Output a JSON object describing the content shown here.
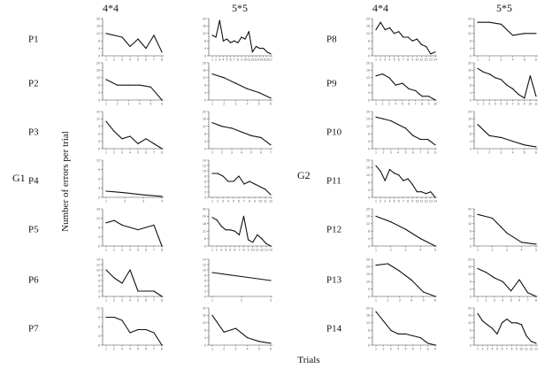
{
  "xlabel": "Trials",
  "ylabel": "Number of errors per trial",
  "columns": [
    "4*4",
    "5*5",
    "4*4",
    "5*5"
  ],
  "groups": [
    "G1",
    "G2"
  ],
  "chart_data": [
    {
      "type": "line",
      "group": "G1",
      "participant": "P1",
      "size": "4*4",
      "ylim": [
        0,
        20
      ],
      "yticks": [
        0,
        4,
        8,
        12,
        16,
        20
      ],
      "x": [
        1,
        2,
        3,
        4,
        5,
        6,
        7,
        8
      ],
      "values": [
        12,
        11,
        10,
        5,
        9,
        4,
        11,
        2
      ]
    },
    {
      "type": "line",
      "group": "G1",
      "participant": "P1",
      "size": "5*5",
      "ylim": [
        0,
        20
      ],
      "yticks": [
        0,
        4,
        8,
        12,
        16,
        20
      ],
      "x": [
        1,
        2,
        3,
        4,
        5,
        6,
        7,
        8,
        9,
        10,
        11,
        12,
        13,
        14,
        15,
        16,
        17
      ],
      "values": [
        11,
        10,
        19,
        8,
        9,
        7,
        8,
        7,
        10,
        9,
        13,
        2,
        5,
        4,
        4,
        2,
        1
      ]
    },
    {
      "type": "line",
      "group": "G1",
      "participant": "P2",
      "size": "4*4",
      "ylim": [
        0,
        20
      ],
      "yticks": [
        0,
        4,
        8,
        12,
        16,
        20
      ],
      "x": [
        1,
        2,
        3,
        4,
        5,
        6
      ],
      "values": [
        11,
        8,
        8,
        8,
        7,
        0
      ]
    },
    {
      "type": "line",
      "group": "G1",
      "participant": "P2",
      "size": "5*5",
      "ylim": [
        0,
        20
      ],
      "yticks": [
        0,
        4,
        8,
        12,
        16,
        20
      ],
      "x": [
        1,
        2,
        3,
        4,
        5,
        6
      ],
      "values": [
        14,
        12,
        9,
        6,
        4,
        1
      ]
    },
    {
      "type": "line",
      "group": "G1",
      "participant": "P3",
      "size": "4*4",
      "ylim": [
        0,
        15
      ],
      "yticks": [
        0,
        3,
        6,
        9,
        12,
        15
      ],
      "x": [
        1,
        2,
        3,
        4,
        5,
        6,
        7,
        8
      ],
      "values": [
        11,
        7,
        4,
        5,
        2,
        4,
        2,
        0
      ]
    },
    {
      "type": "line",
      "group": "G1",
      "participant": "P3",
      "size": "5*5",
      "ylim": [
        0,
        20
      ],
      "yticks": [
        0,
        4,
        8,
        12,
        16,
        20
      ],
      "x": [
        1,
        2,
        3,
        4,
        5,
        6,
        7
      ],
      "values": [
        14,
        12,
        11,
        9,
        7,
        6,
        2
      ]
    },
    {
      "type": "line",
      "group": "G1",
      "participant": "P4",
      "size": "4*4",
      "ylim": [
        0,
        12
      ],
      "yticks": [
        0,
        3,
        6,
        9,
        12
      ],
      "x": [
        1,
        2,
        3,
        4
      ],
      "values": [
        2,
        1.5,
        0.8,
        0.3
      ]
    },
    {
      "type": "line",
      "group": "G1",
      "participant": "P4",
      "size": "5*5",
      "ylim": [
        0,
        14
      ],
      "yticks": [
        0,
        2,
        4,
        6,
        8,
        10,
        12,
        14
      ],
      "x": [
        1,
        2,
        3,
        4,
        5,
        6,
        7,
        8,
        9,
        10,
        11,
        12
      ],
      "values": [
        9,
        9,
        8,
        6,
        6,
        8,
        5,
        6,
        5,
        4,
        3,
        1
      ]
    },
    {
      "type": "line",
      "group": "G1",
      "participant": "P5",
      "size": "4*4",
      "ylim": [
        0,
        16
      ],
      "yticks": [
        0,
        4,
        8,
        12,
        16
      ],
      "x": [
        1,
        2,
        3,
        4,
        5,
        6,
        7,
        8
      ],
      "values": [
        10,
        11,
        9,
        8,
        7,
        8,
        9,
        0
      ]
    },
    {
      "type": "line",
      "group": "G1",
      "participant": "P5",
      "size": "5*5",
      "ylim": [
        0,
        30
      ],
      "yticks": [
        0,
        6,
        12,
        18,
        24,
        30
      ],
      "x": [
        1,
        2,
        3,
        4,
        5,
        6,
        7,
        8,
        9,
        10,
        11,
        12,
        13,
        14
      ],
      "values": [
        23,
        21,
        16,
        13,
        13,
        12,
        9,
        24,
        5,
        3,
        9,
        6,
        2,
        0
      ]
    },
    {
      "type": "line",
      "group": "G1",
      "participant": "P6",
      "size": "4*4",
      "ylim": [
        0,
        14
      ],
      "yticks": [
        0,
        2,
        4,
        6,
        8,
        10,
        12,
        14
      ],
      "x": [
        1,
        2,
        3,
        4,
        5,
        6,
        7,
        8
      ],
      "values": [
        10,
        7,
        5,
        10,
        2,
        2,
        2,
        0
      ]
    },
    {
      "type": "line",
      "group": "G1",
      "participant": "P6",
      "size": "5*5",
      "ylim": [
        0,
        14
      ],
      "yticks": [
        0,
        2,
        4,
        6,
        8,
        10,
        12,
        14
      ],
      "x": [
        1,
        2,
        3
      ],
      "values": [
        9,
        7.5,
        6
      ]
    },
    {
      "type": "line",
      "group": "G1",
      "participant": "P7",
      "size": "4*4",
      "ylim": [
        0,
        12
      ],
      "yticks": [
        0,
        3,
        6,
        9,
        12
      ],
      "x": [
        1,
        2,
        3,
        4,
        5,
        6,
        7,
        8
      ],
      "values": [
        9,
        9,
        8,
        4,
        5,
        5,
        4,
        0
      ]
    },
    {
      "type": "line",
      "group": "G1",
      "participant": "P7",
      "size": "5*5",
      "ylim": [
        0,
        20
      ],
      "yticks": [
        0,
        4,
        8,
        12,
        16,
        20
      ],
      "x": [
        1,
        2,
        3,
        4,
        5,
        6
      ],
      "values": [
        16,
        7,
        9,
        4,
        2,
        1
      ]
    },
    {
      "type": "line",
      "group": "G2",
      "participant": "P8",
      "size": "4*4",
      "ylim": [
        0,
        20
      ],
      "yticks": [
        0,
        4,
        8,
        12,
        16,
        20
      ],
      "x": [
        1,
        2,
        3,
        4,
        5,
        6,
        7,
        8,
        9,
        10,
        11,
        12,
        13,
        14
      ],
      "values": [
        14,
        18,
        14,
        15,
        12,
        13,
        10,
        10,
        8,
        9,
        6,
        5,
        1,
        2
      ]
    },
    {
      "type": "line",
      "group": "G2",
      "participant": "P8",
      "size": "5*5",
      "ylim": [
        0,
        20
      ],
      "yticks": [
        0,
        4,
        8,
        12,
        16,
        20
      ],
      "x": [
        1,
        2,
        3,
        4,
        5,
        6
      ],
      "values": [
        18,
        18,
        17,
        11,
        12,
        12
      ]
    },
    {
      "type": "line",
      "group": "G2",
      "participant": "P9",
      "size": "4*4",
      "ylim": [
        0,
        20
      ],
      "yticks": [
        0,
        4,
        8,
        12,
        16,
        20
      ],
      "x": [
        1,
        2,
        3,
        4,
        5,
        6,
        7,
        8,
        9,
        10
      ],
      "values": [
        13,
        14,
        12,
        8,
        9,
        6,
        5,
        2,
        2,
        0
      ]
    },
    {
      "type": "line",
      "group": "G2",
      "participant": "P9",
      "size": "5*5",
      "ylim": [
        0,
        20
      ],
      "yticks": [
        0,
        4,
        8,
        12,
        16,
        20
      ],
      "x": [
        1,
        2,
        3,
        4,
        5,
        6,
        7,
        8,
        9,
        10,
        11
      ],
      "values": [
        17,
        15,
        14,
        12,
        11,
        8,
        6,
        3,
        1,
        13,
        2
      ]
    },
    {
      "type": "line",
      "group": "G2",
      "participant": "P10",
      "size": "4*4",
      "ylim": [
        0,
        20
      ],
      "yticks": [
        0,
        4,
        8,
        12,
        16,
        20
      ],
      "x": [
        1,
        2,
        3,
        4,
        5,
        6,
        7,
        8,
        9
      ],
      "values": [
        17,
        16,
        15,
        13,
        11,
        7,
        5,
        5,
        2
      ]
    },
    {
      "type": "line",
      "group": "G2",
      "participant": "P10",
      "size": "5*5",
      "ylim": [
        0,
        20
      ],
      "yticks": [
        0,
        4,
        8,
        12,
        16,
        20
      ],
      "x": [
        1,
        2,
        3,
        4,
        5,
        6
      ],
      "values": [
        13,
        7,
        6,
        4,
        2,
        1
      ]
    },
    {
      "type": "line",
      "group": "G2",
      "participant": "P11",
      "size": "4*4",
      "ylim": [
        0,
        20
      ],
      "yticks": [
        0,
        4,
        8,
        12,
        16,
        20
      ],
      "x": [
        1,
        2,
        3,
        4,
        5,
        6,
        7,
        8,
        9,
        10,
        11,
        12,
        13,
        14
      ],
      "values": [
        17,
        14,
        9,
        15,
        13,
        12,
        9,
        10,
        7,
        3,
        3,
        2,
        3,
        0
      ]
    },
    {
      "type": "line",
      "group": "G2",
      "participant": "P12",
      "size": "4*4",
      "ylim": [
        0,
        20
      ],
      "yticks": [
        0,
        4,
        8,
        12,
        16,
        20
      ],
      "x": [
        1,
        2,
        3,
        4,
        5
      ],
      "values": [
        16,
        13,
        9,
        4,
        0
      ]
    },
    {
      "type": "line",
      "group": "G2",
      "participant": "P12",
      "size": "5*5",
      "ylim": [
        0,
        20
      ],
      "yticks": [
        0,
        4,
        8,
        12,
        16,
        20
      ],
      "x": [
        1,
        2,
        3,
        4,
        5
      ],
      "values": [
        17,
        15,
        7,
        2,
        1
      ]
    },
    {
      "type": "line",
      "group": "G2",
      "participant": "P13",
      "size": "4*4",
      "ylim": [
        0,
        25
      ],
      "yticks": [
        0,
        5,
        10,
        15,
        20,
        25
      ],
      "x": [
        1,
        2,
        3,
        4,
        5,
        6
      ],
      "values": [
        21,
        22,
        17,
        11,
        3,
        0
      ]
    },
    {
      "type": "line",
      "group": "G2",
      "participant": "P13",
      "size": "5*5",
      "ylim": [
        0,
        20
      ],
      "yticks": [
        0,
        4,
        8,
        12,
        16,
        20
      ],
      "x": [
        1,
        2,
        3,
        4,
        5,
        6,
        7,
        8
      ],
      "values": [
        15,
        13,
        10,
        8,
        3,
        9,
        2,
        0
      ]
    },
    {
      "type": "line",
      "group": "G2",
      "participant": "P14",
      "size": "4*4",
      "ylim": [
        0,
        20
      ],
      "yticks": [
        0,
        4,
        8,
        12,
        16,
        20
      ],
      "x": [
        1,
        2,
        3,
        4,
        5,
        6,
        7,
        8,
        9
      ],
      "values": [
        18,
        13,
        8,
        6,
        6,
        5,
        4,
        1,
        0
      ]
    },
    {
      "type": "line",
      "group": "G2",
      "participant": "P14",
      "size": "5*5",
      "ylim": [
        0,
        20
      ],
      "yticks": [
        0,
        4,
        8,
        12,
        16,
        20
      ],
      "x": [
        1,
        2,
        3,
        4,
        5,
        6,
        7,
        8,
        9,
        10,
        11,
        12,
        13
      ],
      "values": [
        17,
        13,
        11,
        9,
        6,
        12,
        14,
        12,
        12,
        11,
        5,
        2,
        1
      ]
    }
  ]
}
